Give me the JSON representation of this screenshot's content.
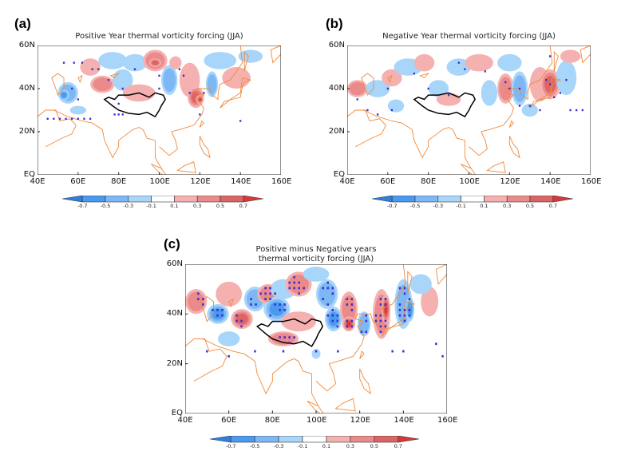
{
  "panels": [
    {
      "label": "(a)",
      "title": "Positive Year thermal vorticity forcing (JJA)"
    },
    {
      "label": "(b)",
      "title": "Negative Year thermal vorticity forcing (JJA)"
    },
    {
      "label": "(c)",
      "title_line1": "Positive minus Negative years",
      "title_line2": "thermal vorticity forcing (JJA)"
    }
  ],
  "axes": {
    "x_ticks": [
      "40E",
      "60E",
      "80E",
      "100E",
      "120E",
      "140E",
      "160E"
    ],
    "y_ticks": [
      "60N",
      "40N",
      "20N",
      "EQ"
    ],
    "lon_range": [
      40,
      160
    ],
    "lat_range": [
      0,
      60
    ]
  },
  "colorbar": {
    "labels": [
      "-0.7",
      "-0.5",
      "-0.3",
      "-0.1",
      "0.1",
      "0.3",
      "0.5",
      "0.7"
    ],
    "colors": [
      "#2f7fe0",
      "#4a9af0",
      "#7db8f5",
      "#a8d5fa",
      "#ffffff",
      "#f5b0b0",
      "#eb8a8a",
      "#dd6464",
      "#d83838"
    ],
    "extend": "both"
  },
  "colors": {
    "coastline": "#f08a3c",
    "plateau_outline": "#000000",
    "stipple": "#3a2fd0"
  }
}
